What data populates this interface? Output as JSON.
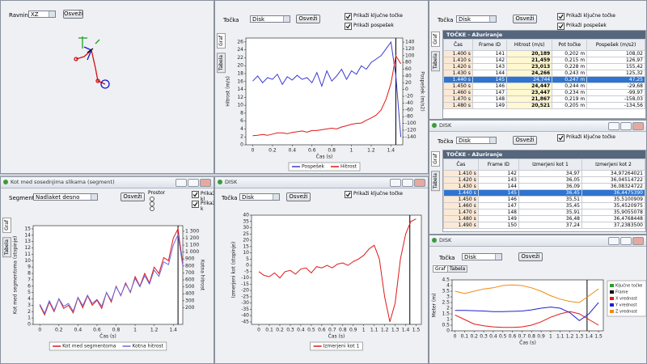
{
  "windows": [
    {
      "fields": [
        {
          "label": "Ravnina",
          "value": "XZ"
        }
      ],
      "button": "Osveži"
    },
    {
      "fields": [
        {
          "label": "Točka",
          "value": "Disk"
        }
      ],
      "button": "Osveži",
      "checkboxes": [
        "Prikaži ključne točke",
        "Prikaži pospešek"
      ],
      "tabs": [
        "Graf",
        "Tabela"
      ],
      "chart": {
        "type": "line",
        "x_label": "Čas (s)",
        "y_label": "Hitrost (m/s)",
        "y2_label": "Pospešek (m/s2)",
        "legend": "bottom",
        "xlim": [
          -0.07,
          1.52
        ],
        "xticks": [
          0,
          0.2,
          0.4,
          0.6,
          0.8,
          1,
          1.2,
          1.4
        ],
        "ylim": [
          0,
          27
        ],
        "yticks": [
          0,
          2,
          4,
          6,
          8,
          10,
          12,
          14,
          16,
          18,
          20,
          22,
          24,
          26
        ],
        "y2lim": [
          -163,
          152
        ],
        "y2ticks": [
          -140,
          -120,
          -100,
          -80,
          -60,
          -40,
          -20,
          0,
          20,
          40,
          60,
          80,
          100,
          120,
          140
        ],
        "frame_x": 1.45,
        "x": [
          0,
          0.05,
          0.1,
          0.15,
          0.2,
          0.25,
          0.3,
          0.35,
          0.4,
          0.45,
          0.5,
          0.55,
          0.6,
          0.65,
          0.7,
          0.75,
          0.8,
          0.85,
          0.9,
          0.95,
          1,
          1.05,
          1.1,
          1.15,
          1.2,
          1.25,
          1.3,
          1.35,
          1.4,
          1.45,
          1.5
        ],
        "series": [
          {
            "name": "Pospešek",
            "color": "#3a3ad0",
            "axis": "y2",
            "values": [
              25,
              40,
              20,
              35,
              30,
              45,
              15,
              38,
              28,
              42,
              30,
              35,
              20,
              50,
              10,
              55,
              25,
              40,
              60,
              30,
              55,
              45,
              70,
              60,
              80,
              90,
              100,
              120,
              140,
              40,
              -140
            ]
          },
          {
            "name": "Hitrost",
            "color": "#e01818",
            "values": [
              2.3,
              2.4,
              2.6,
              2.4,
              2.7,
              3.0,
              3.0,
              2.8,
              3.1,
              3.3,
              3.5,
              3.2,
              3.6,
              3.6,
              3.8,
              4.0,
              4.2,
              4.0,
              4.5,
              4.8,
              5.2,
              5.4,
              5.5,
              6.2,
              6.8,
              7.5,
              8.8,
              11.5,
              15.5,
              22.5,
              20.5
            ]
          }
        ]
      }
    },
    {
      "fields": [
        {
          "label": "Točka",
          "value": "Disk"
        }
      ],
      "button": "Osveži",
      "checkboxes": [
        "Prikaži ključne točke",
        "Prikaži pospešek"
      ],
      "tabs": [
        "Graf",
        "Tabela"
      ],
      "table": {
        "title": "TOČKE - Ažuriranje",
        "columns": [
          "Čas",
          "Frame ID",
          "Hitrost (m/s)",
          "Pot točke",
          "Pospešek (m/s2)"
        ],
        "selected_row": 4,
        "rows": [
          [
            "1.400 s",
            "141",
            "20,189",
            "0,202 m",
            "108,02"
          ],
          [
            "1.410 s",
            "142",
            "21,459",
            "0,215 m",
            "126,97"
          ],
          [
            "1.420 s",
            "143",
            "23,013",
            "0,228 m",
            "155,42"
          ],
          [
            "1.430 s",
            "144",
            "24,266",
            "0,243 m",
            "125,32"
          ],
          [
            "1.440 s",
            "145",
            "24,744",
            "0,247 m",
            "47,25"
          ],
          [
            "1.450 s",
            "146",
            "24,447",
            "0,244 m",
            "-29,68"
          ],
          [
            "1.460 s",
            "147",
            "23,447",
            "0,234 m",
            "-99,97"
          ],
          [
            "1.470 s",
            "148",
            "21,867",
            "0,219 m",
            "-158,03"
          ],
          [
            "1.480 s",
            "149",
            "20,521",
            "0,205 m",
            "-134,56"
          ]
        ]
      }
    },
    {
      "title": "DISK",
      "fields": [
        {
          "label": "Točka",
          "value": "Disk"
        }
      ],
      "button": "Osveži",
      "checkboxes": [
        "Prikaži ključne točke"
      ],
      "tabs": [
        "Graf",
        "Tabela"
      ],
      "table": {
        "title": "TOČKE - Ažuriranje",
        "columns": [
          "Čas",
          "Frame ID",
          "Izmerjeni kot 1",
          "Izmerjeni kot 2"
        ],
        "selected_row": 3,
        "rows": [
          [
            "1.410 s",
            "142",
            "34,97",
            "34,97264021"
          ],
          [
            "1.420 s",
            "143",
            "36,05",
            "36,04514722"
          ],
          [
            "1.430 s",
            "144",
            "36,09",
            "36,08324722"
          ],
          [
            "1.440 s",
            "145",
            "36,45",
            "36,4475390"
          ],
          [
            "1.450 s",
            "146",
            "35,51",
            "35,5100909"
          ],
          [
            "1.460 s",
            "147",
            "35,45",
            "35,4520975"
          ],
          [
            "1.470 s",
            "148",
            "35,91",
            "35,9055078"
          ],
          [
            "1.480 s",
            "149",
            "36,48",
            "36,4768448"
          ],
          [
            "1.490 s",
            "150",
            "37,24",
            "37,2383500"
          ]
        ]
      }
    },
    {
      "title": "DISK",
      "fields": [
        {
          "label": "Točka",
          "value": "Disk"
        }
      ],
      "button": "Osveži",
      "tabs": [
        "Graf",
        "Tabela"
      ],
      "chart": {
        "type": "line",
        "x_label": "Čas (s)",
        "y_label": "Meter (m)",
        "legend": "right",
        "xlim": [
          -0.03,
          1.55
        ],
        "xticks": [
          0,
          0.1,
          0.2,
          0.3,
          0.4,
          0.5,
          0.6,
          0.7,
          0.8,
          0.9,
          1,
          1.1,
          1.2,
          1.3,
          1.4,
          1.5
        ],
        "ylim": [
          0,
          4.5
        ],
        "yticks": [
          0,
          0.5,
          1,
          1.5,
          2,
          2.5,
          3,
          3.5,
          4,
          4.5
        ],
        "frame_x": 1.38,
        "legend_extra": [
          {
            "name": "Ključne točke",
            "color": "#2a9d2a"
          },
          {
            "name": "Frame",
            "color": "#000000"
          }
        ],
        "x": [
          0,
          0.1,
          0.2,
          0.3,
          0.4,
          0.5,
          0.6,
          0.7,
          0.8,
          0.9,
          1,
          1.1,
          1.2,
          1.3,
          1.4,
          1.5
        ],
        "series": [
          {
            "name": "X vrednost",
            "color": "#e01818",
            "values": [
              1.4,
              1.0,
              0.6,
              0.45,
              0.35,
              0.3,
              0.3,
              0.35,
              0.5,
              0.8,
              1.2,
              1.5,
              1.7,
              1.5,
              1.0,
              0.5
            ]
          },
          {
            "name": "Y vrednost",
            "color": "#2020d0",
            "values": [
              1.8,
              1.8,
              1.78,
              1.75,
              1.7,
              1.7,
              1.72,
              1.75,
              1.85,
              2.0,
              2.1,
              2.0,
              1.6,
              0.9,
              1.5,
              2.5
            ]
          },
          {
            "name": "Z vrednost",
            "color": "#f08a10",
            "values": [
              3.5,
              3.3,
              3.5,
              3.7,
              3.8,
              4.0,
              4.05,
              4.0,
              3.8,
              3.5,
              3.1,
              2.8,
              2.6,
              2.5,
              3.1,
              3.7
            ]
          }
        ]
      }
    },
    {
      "title": "Kot med sosednjima slikama (segment)",
      "fields": [
        {
          "label": "Segment 1:",
          "value": "Nadlaket desno"
        }
      ],
      "button": "Osveži",
      "radio_title": "Prostor",
      "checkboxes": [
        "Prikaži kl",
        "Prikaži k"
      ],
      "tabs": [
        "Graf",
        "Tabela"
      ],
      "chart": {
        "type": "line",
        "x_label": "Čas (s)",
        "y_label": "Kot med segmentoma (stopinje)",
        "y2_label": "Kotna hitrost",
        "legend": "bottom",
        "xlim": [
          -0.07,
          1.5
        ],
        "xticks": [
          0,
          0.2,
          0.4,
          0.6,
          0.8,
          1,
          1.2,
          1.4
        ],
        "ylim": [
          0,
          15.5
        ],
        "yticks": [
          0,
          1,
          2,
          3,
          4,
          5,
          6,
          7,
          8,
          9,
          10,
          11,
          12,
          13,
          14,
          15
        ],
        "y2lim": [
          -40,
          1380
        ],
        "y2ticks": [
          200,
          300,
          400,
          500,
          600,
          700,
          800,
          900,
          {
            "value": 1000,
            "label": "1 000"
          },
          {
            "value": 1100,
            "label": "1 100"
          },
          {
            "value": 1200,
            "label": "1 200"
          },
          {
            "value": 1300,
            "label": "1 300"
          }
        ],
        "frame_x": 1.45,
        "x": [
          0,
          0.05,
          0.1,
          0.15,
          0.2,
          0.25,
          0.3,
          0.35,
          0.4,
          0.45,
          0.5,
          0.55,
          0.6,
          0.65,
          0.7,
          0.75,
          0.8,
          0.85,
          0.9,
          0.95,
          1,
          1.05,
          1.1,
          1.15,
          1.2,
          1.25,
          1.3,
          1.35,
          1.4,
          1.45,
          1.5
        ],
        "series": [
          {
            "name": "Kot med segmentoma",
            "color": "#e01818",
            "values": [
              3.0,
              1.5,
              3.5,
              2.0,
              4.0,
              2.5,
              3.0,
              1.8,
              4.2,
              2.6,
              4.5,
              3.0,
              3.8,
              2.5,
              5.0,
              3.5,
              6.0,
              4.5,
              6.5,
              5.0,
              7.5,
              6.0,
              8.0,
              6.5,
              9.0,
              8.0,
              10.5,
              10.0,
              13.5,
              15.0,
              9.5
            ]
          },
          {
            "name": "Kotna hitrost",
            "color": "#6a6ae0",
            "axis": "y2",
            "values": [
              250,
              120,
              300,
              160,
              330,
              220,
              260,
              150,
              350,
              230,
              380,
              260,
              320,
              220,
              420,
              300,
              500,
              380,
              540,
              430,
              620,
              500,
              660,
              540,
              740,
              650,
              860,
              820,
              1100,
              1250,
              800
            ]
          }
        ]
      }
    },
    {
      "title": "DISK",
      "fields": [
        {
          "label": "Točka",
          "value": "Disk"
        }
      ],
      "button": "Osveži",
      "checkboxes": [
        "Prikaži ključne točke"
      ],
      "chart": {
        "type": "line",
        "x_label": "Čas (s)",
        "y_label": "Izmerjeni kot (stopinje)",
        "legend": "bottom",
        "xlim": [
          -0.07,
          1.55
        ],
        "xticks": [
          0,
          0.1,
          0.2,
          0.3,
          0.4,
          0.5,
          0.6,
          0.7,
          0.8,
          0.9,
          1,
          1.1,
          1.2,
          1.3,
          1.4,
          1.5
        ],
        "ylim": [
          -47,
          40
        ],
        "yticks": [
          -45,
          -40,
          -35,
          -30,
          -25,
          -20,
          -15,
          -10,
          -5,
          0,
          5,
          10,
          15,
          20,
          25,
          30,
          35,
          40
        ],
        "frame_x": 1.44,
        "x": [
          0,
          0.05,
          0.1,
          0.15,
          0.2,
          0.25,
          0.3,
          0.35,
          0.4,
          0.45,
          0.5,
          0.55,
          0.6,
          0.65,
          0.7,
          0.75,
          0.8,
          0.85,
          0.9,
          0.95,
          1,
          1.05,
          1.1,
          1.15,
          1.2,
          1.25,
          1.3,
          1.35,
          1.4,
          1.45,
          1.5
        ],
        "series": [
          {
            "name": "Izmerjeni kot 1",
            "color": "#e01818",
            "values": [
              -5,
              -8,
              -9,
              -6,
              -10,
              -5,
              -4,
              -7,
              -3,
              -2,
              -6,
              -1,
              -2,
              0,
              -2,
              1,
              2,
              0,
              3,
              5,
              8,
              13,
              16,
              5,
              -25,
              -45,
              -30,
              5,
              25,
              35,
              37
            ]
          }
        ]
      }
    }
  ]
}
